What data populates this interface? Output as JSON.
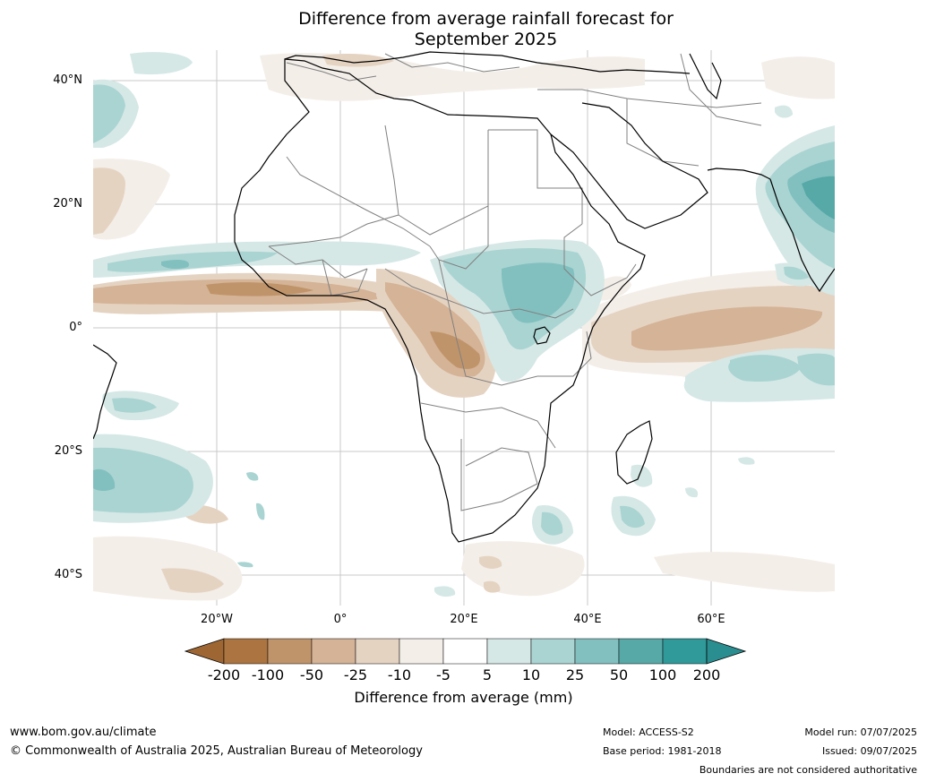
{
  "title_line1": "Difference from average rainfall forecast for",
  "title_line2": "September 2025",
  "lat_labels": [
    "40°N",
    "20°N",
    "0°",
    "20°S",
    "40°S"
  ],
  "lon_labels": [
    "20°W",
    "0°",
    "20°E",
    "40°E",
    "60°E"
  ],
  "legend": {
    "title": "Difference from average (mm)",
    "ticks": [
      "-200",
      "-100",
      "-50",
      "-25",
      "-10",
      "-5",
      "5",
      "10",
      "25",
      "50",
      "100",
      "200"
    ],
    "colors": [
      "#9e6633",
      "#ab7440",
      "#c0946a",
      "#d4b396",
      "#e5d3c2",
      "#f3eee8",
      "#ffffff",
      "#d5e8e6",
      "#aad4d2",
      "#82c0bf",
      "#57a9a8",
      "#30999a",
      "#2a8e90"
    ]
  },
  "footer": {
    "url": "www.bom.gov.au/climate",
    "copyright": "© Commonwealth of Australia 2025, Australian Bureau of Meteorology",
    "model": "Model: ACCESS-S2",
    "base_period": "Base period: 1981-2018",
    "model_run": "Model run: 07/07/2025",
    "issued": "Issued: 09/07/2025",
    "disclaimer": "Boundaries are not considered authoritative"
  }
}
